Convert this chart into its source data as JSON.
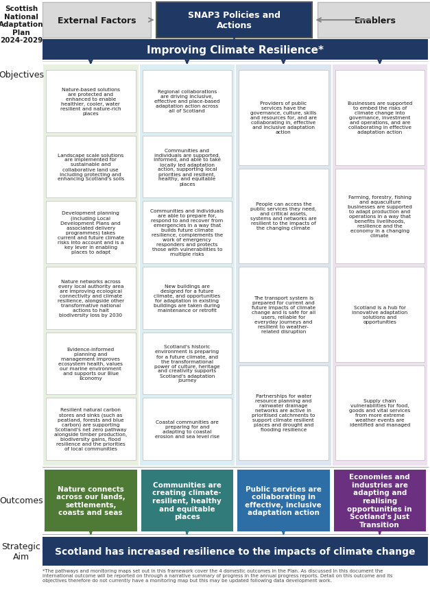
{
  "title_text": "Scottish\nNational\nAdaptation\nPlan\n2024-2029",
  "header_boxes": [
    {
      "label": "External Factors",
      "color": "#d9d9d9",
      "text_color": "#1a1a1a"
    },
    {
      "label": "SNAP3 Policies and\nActions",
      "color": "#1f3864",
      "text_color": "#ffffff"
    },
    {
      "label": "Enablers",
      "color": "#d9d9d9",
      "text_color": "#1a1a1a"
    }
  ],
  "improving_bar": {
    "label": "Improving Climate Resilience*",
    "color": "#1f3864",
    "text_color": "#ffffff"
  },
  "objectives_label": "Objectives",
  "outcomes_label": "Outcomes",
  "strategic_aim_label": "Strategic\nAim",
  "col_bg_colors": [
    "#e8f0e0",
    "#daeef3",
    "#dce6f1",
    "#ede0ef"
  ],
  "col_header_colors": [
    "#4e7a35",
    "#317b7b",
    "#2e6ea6",
    "#6b3080"
  ],
  "columns": [
    {
      "objectives": [
        "Nature-based solutions\nare protected and\nenhanced to enable\nhealthier, cooler, water\nresilient and nature-rich\nplaces",
        "Landscape scale solutions\nare implemented for\nsustainable and\ncollaborative land use\nincluding protecting and\nenhancing Scotland's soils",
        "Development planning\n(including Local\nDevelopment Plans and\nassociated delivery\nprogrammes) takes\ncurrent and future climate\nrisks into account and is a\nkey lever in enabling\nplaces to adapt",
        "Nature networks across\nevery local authority area\nare improving ecological\nconnectivity and climate\nresilience, alongside other\ntransformative national\nactions to halt\nbiodiversity loss by 2030",
        "Evidence-informed\nplanning and\nmanagement improves\necosystem health, values\nour marine environment\nand supports our Blue\nEconomy",
        "Resilient natural carbon\nstores and sinks (such as\npeatland, forests and blue\ncarbon) are supporting\nScotland's net zero pathway\nalongside timber production,\nbiodiversity gains, flood\nresilience and the priorities\nof local communities"
      ],
      "outcome": "Nature connects\nacross our lands,\nsettlements,\ncoasts and seas"
    },
    {
      "objectives": [
        "Regional collaborations\nare driving inclusive,\neffective and place-based\nadaptation action across\nall of Scotland",
        "Communities and\nindividuals are supported,\ninformed, and able to take\nlocally led adaptation\naction, supporting local\npriorities and resilient,\nhealthy, and equitable\nplaces",
        "Communities and individuals\nare able to prepare for,\nrespond to and recover from\nemergencies in a way that\nbuilds future climate\nresilience, complements the\nwork of emergency\nresponders and protects\nthose with vulnerabilities to\nmultiple risks",
        "New buildings are\ndesigned for a future\nclimate, and opportunities\nfor adaptation in existing\nbuildings are taken during\nmaintenance or retrofit",
        "Scotland's historic\nenvironment is preparing\nfor a future climate, and\nthe transformational\npower of culture, heritage\nand creativity supports\nScotland's adaptation\njourney",
        "Coastal communities are\npreparing for and\nadapting to coastal\nerosion and sea level rise"
      ],
      "outcome": "Communities are\ncreating climate-\nresilient, healthy\nand equitable\nplaces"
    },
    {
      "objectives": [
        "Providers of public\nservices have the\ngovernance, culture, skills\nand resources for, and are\ncollaborating in, effective\nand inclusive adaptation\naction",
        "People can access the\npublic services they need,\nand critical assets,\nsystems and networks are\nresilient to the impacts of\nthe changing climate",
        "The transport system is\nprepared for current and\nfuture impacts of climate\nchange and is safe for all\nusers, reliable for\neveryday journeys and\nresilient to weather-\nrelated disruption",
        "Partnerships for water\nresource planning and\nrainwater drainage\nnetworks are active in\nprioritised catchments to\nsupport climate resilient\nplaces and drought and\nflooding resilience"
      ],
      "outcome": "Public services are\ncollaborating in\neffective, inclusive\nadaptation action"
    },
    {
      "objectives": [
        "Businesses are supported\nto embed the risks of\nclimate change into\ngovernance, investment\nand operations, and are\ncollaborating in effective\nadaptation action",
        "Farming, forestry, fishing\nand aquaculture\nbusinesses are supported\nto adapt production and\noperations in a way that\nbenefits livelihoods,\nresilience and the\neconomy in a changing\nclimate",
        "Scotland is a hub for\ninnovative adaptation\nsolutions and\nopportunities",
        "Supply chain\nvulnerabilities for food,\ngoods and vital services\nfrom more extreme\nweather events are\nidentified and managed"
      ],
      "outcome": "Economies and\nindustries are\nadapting and\nrealising\nopportunities in\nScotland's Just\nTransition"
    }
  ],
  "strategic_aim_text": "Scotland has increased resilience to the impacts of climate change",
  "footnote": "*The pathways and monitoring maps set out in this framework cover the 4 domestic outcomes in the Plan. As discussed in this document the\ninternational outcome will be reported on through a narrative summary of progress in the annual progress reports. Detail on this outcome and its\nobjectives therefore do not currently have a monitoring map but this may be updated following data development work."
}
